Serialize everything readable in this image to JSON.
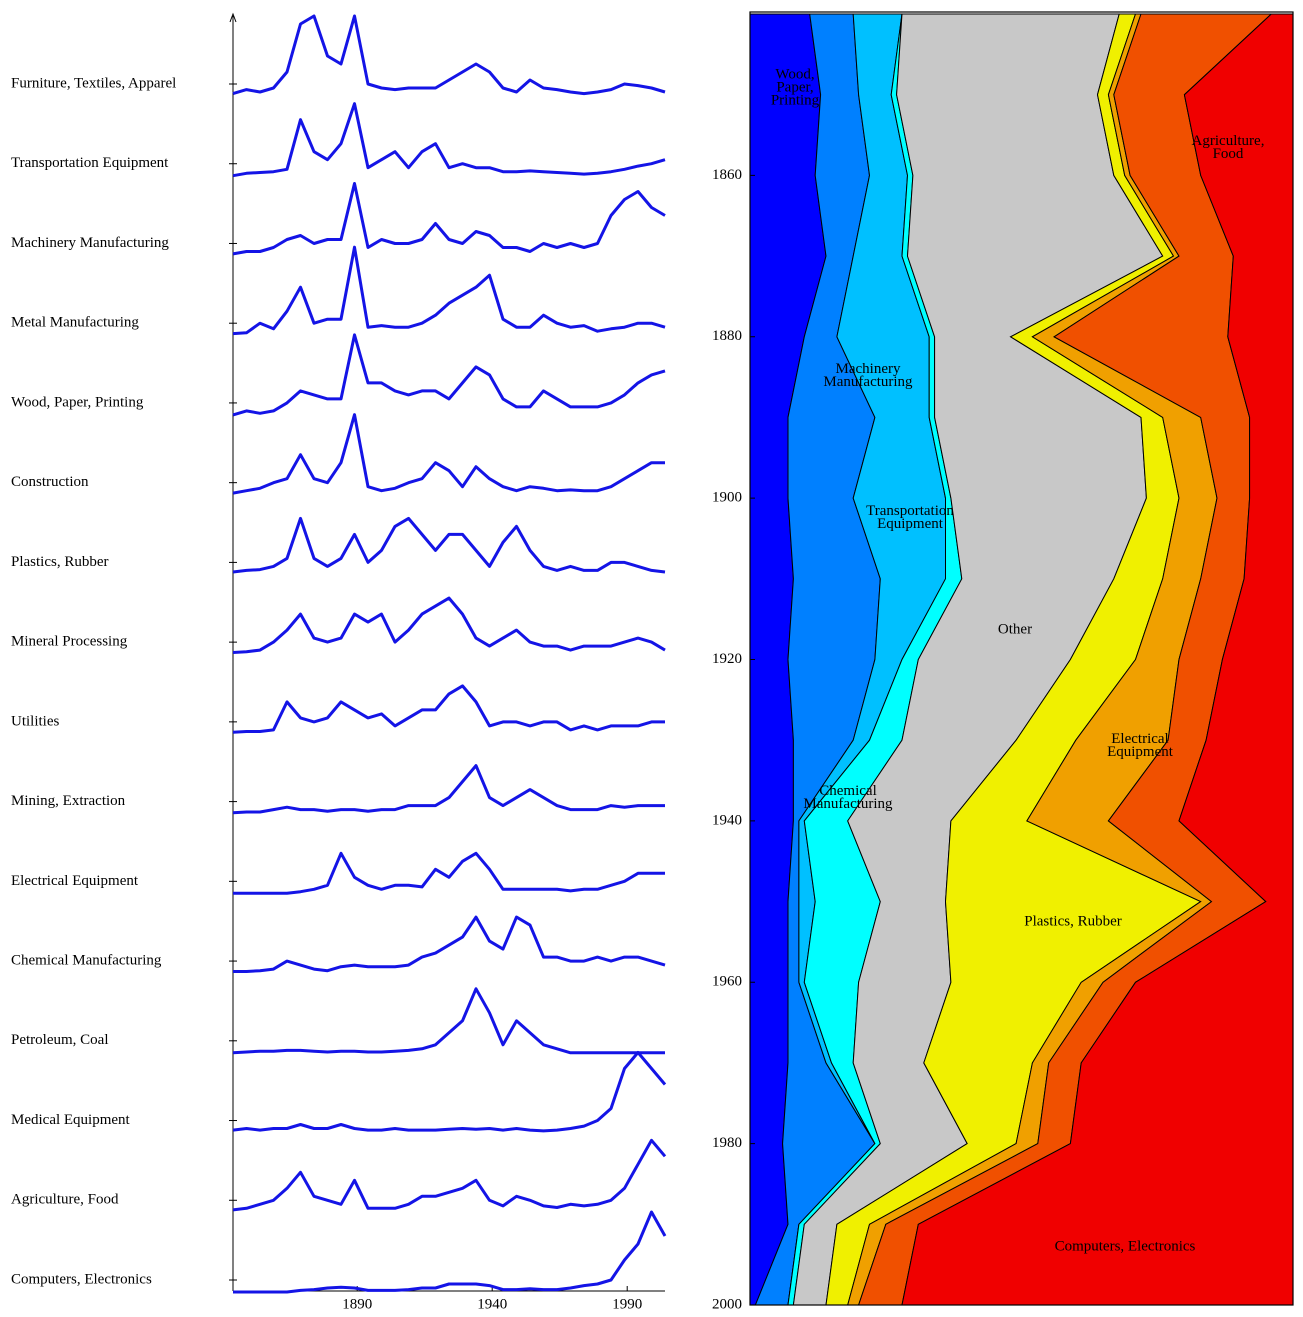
{
  "chart_data": [
    {
      "type": "line",
      "x": [
        1844,
        1849,
        1854,
        1859,
        1864,
        1869,
        1874,
        1879,
        1884,
        1889,
        1894,
        1899,
        1904,
        1909,
        1914,
        1919,
        1924,
        1929,
        1934,
        1939,
        1944,
        1949,
        1954,
        1959,
        1964,
        1969,
        1974,
        1979,
        1984,
        1989,
        1994,
        1999,
        2004
      ],
      "xlim": [
        1844,
        2004
      ],
      "xticks": [
        1890,
        1940,
        1990
      ],
      "series": [
        {
          "name": "Furniture, Textiles, Apparel",
          "color": "#1414e6",
          "values": [
            0.3,
            0.8,
            0.5,
            1,
            3,
            9,
            10,
            5,
            4,
            10,
            1.5,
            1,
            0.8,
            1,
            1,
            1,
            2,
            3,
            4,
            3,
            1,
            0.5,
            2,
            1,
            0.8,
            0.5,
            0.3,
            0.5,
            0.8,
            1.5,
            1.3,
            1,
            0.5
          ]
        },
        {
          "name": "Transportation Equipment",
          "color": "#1414e6",
          "values": [
            0,
            0.3,
            0.4,
            0.5,
            0.8,
            7,
            3,
            2,
            4,
            9,
            1,
            2,
            3,
            1,
            3,
            4,
            1,
            1.5,
            1,
            1,
            0.5,
            0.5,
            0.6,
            0.5,
            0.4,
            0.3,
            0.2,
            0.3,
            0.5,
            0.8,
            1.2,
            1.5,
            2
          ]
        },
        {
          "name": "Machinery Manufacturing",
          "color": "#1414e6",
          "values": [
            0.2,
            0.5,
            0.5,
            1,
            2,
            2.5,
            1.5,
            2,
            2,
            9,
            1,
            2,
            1.5,
            1.5,
            2,
            4,
            2,
            1.5,
            3,
            2.5,
            1,
            1,
            0.5,
            1.5,
            1,
            1.5,
            1,
            1.5,
            5,
            7,
            8,
            6,
            5
          ]
        },
        {
          "name": "Metal Manufacturing",
          "color": "#1414e6",
          "values": [
            0.2,
            0.3,
            1.5,
            0.8,
            3,
            6,
            1.5,
            2,
            2,
            11,
            1,
            1.2,
            1,
            1,
            1.5,
            2.5,
            4,
            5,
            6,
            7.5,
            2,
            1,
            1,
            2.5,
            1.5,
            1,
            1.2,
            0.5,
            0.8,
            1,
            1.5,
            1.5,
            1
          ]
        },
        {
          "name": "Wood, Paper, Printing",
          "color": "#1414e6",
          "values": [
            0,
            0.5,
            0.2,
            0.5,
            1.5,
            3,
            2.5,
            2,
            2,
            10,
            4,
            4,
            3,
            2.5,
            3,
            3,
            2,
            4,
            6,
            5,
            2,
            1,
            1,
            3,
            2,
            1,
            1,
            1,
            1.5,
            2.5,
            4,
            5,
            5.5
          ]
        },
        {
          "name": "Construction",
          "color": "#1414e6",
          "values": [
            0.2,
            0.5,
            0.8,
            1.5,
            2,
            5,
            2,
            1.5,
            4,
            10,
            1,
            0.5,
            0.8,
            1.5,
            2,
            4,
            3,
            1,
            3.5,
            2,
            1,
            0.5,
            1,
            0.8,
            0.5,
            0.6,
            0.5,
            0.5,
            1,
            2,
            3,
            4,
            4
          ]
        },
        {
          "name": "Plastics, Rubber",
          "color": "#1414e6",
          "values": [
            0.3,
            0.5,
            0.6,
            1,
            2,
            7,
            2,
            1,
            2,
            5,
            1.5,
            3,
            6,
            7,
            5,
            3,
            5,
            5,
            3,
            1,
            4,
            6,
            3,
            1,
            0.5,
            1,
            0.5,
            0.5,
            1.5,
            1.5,
            1,
            0.5,
            0.3
          ]
        },
        {
          "name": "Mineral Processing",
          "color": "#1414e6",
          "values": [
            0.2,
            0.3,
            0.5,
            1.5,
            3,
            5,
            2,
            1.5,
            2,
            5,
            4,
            5,
            1.5,
            3,
            5,
            6,
            7,
            5,
            2,
            1,
            2,
            3,
            1.5,
            1,
            1,
            0.5,
            1,
            1,
            1,
            1.5,
            2,
            1.5,
            0.5
          ]
        },
        {
          "name": "Utilities",
          "color": "#1414e6",
          "values": [
            0.2,
            0.3,
            0.3,
            0.5,
            4,
            2,
            1.5,
            2,
            4,
            3,
            2,
            2.5,
            1,
            2,
            3,
            3,
            5,
            6,
            4,
            1,
            1.5,
            1.5,
            1,
            1.5,
            1.5,
            0.5,
            1,
            0.5,
            1,
            1,
            1,
            1.5,
            1.5
          ]
        },
        {
          "name": "Mining, Extraction",
          "color": "#1414e6",
          "values": [
            0.1,
            0.2,
            0.2,
            0.5,
            0.8,
            0.5,
            0.5,
            0.3,
            0.5,
            0.5,
            0.3,
            0.5,
            0.5,
            1,
            1,
            1,
            2,
            4,
            6,
            2,
            1,
            2,
            3,
            2,
            1,
            0.5,
            0.5,
            0.5,
            1,
            0.8,
            1,
            1,
            1
          ]
        },
        {
          "name": "Electrical Equipment",
          "color": "#1414e6",
          "values": [
            0,
            0,
            0,
            0,
            0,
            0.2,
            0.5,
            1,
            5,
            2,
            1,
            0.5,
            1,
            1,
            0.8,
            3,
            2,
            4,
            5,
            3,
            0.5,
            0.5,
            0.5,
            0.5,
            0.5,
            0.3,
            0.5,
            0.5,
            1,
            1.5,
            2.5,
            2.5,
            2.5
          ]
        },
        {
          "name": "Chemical Manufacturing",
          "color": "#1414e6",
          "values": [
            0.2,
            0.2,
            0.3,
            0.5,
            1.5,
            1,
            0.5,
            0.3,
            0.8,
            1,
            0.8,
            0.8,
            0.8,
            1,
            2,
            2.5,
            3.5,
            4.5,
            7,
            4,
            3,
            7,
            6,
            2,
            2,
            1.5,
            1.5,
            2,
            1.5,
            2,
            2,
            1.5,
            1
          ]
        },
        {
          "name": "Petroleum, Coal",
          "color": "#1414e6",
          "values": [
            0,
            0.1,
            0.2,
            0.2,
            0.3,
            0.3,
            0.2,
            0.1,
            0.2,
            0.2,
            0.1,
            0.1,
            0.2,
            0.3,
            0.5,
            1,
            2.5,
            4,
            8,
            5,
            1,
            4,
            2.5,
            1,
            0.5,
            0,
            0,
            0,
            0,
            0,
            0,
            0,
            0
          ]
        },
        {
          "name": "Medical Equipment",
          "color": "#1414e6",
          "values": [
            0.3,
            0.5,
            0.3,
            0.5,
            0.5,
            1,
            0.5,
            0.5,
            1,
            0.5,
            0.3,
            0.3,
            0.5,
            0.3,
            0.3,
            0.3,
            0.4,
            0.5,
            0.4,
            0.5,
            0.3,
            0.5,
            0.3,
            0.2,
            0.3,
            0.5,
            0.8,
            1.5,
            3,
            8,
            10,
            8,
            6
          ]
        },
        {
          "name": "Agriculture, Food",
          "color": "#1414e6",
          "values": [
            0.3,
            0.5,
            1,
            1.5,
            3,
            5,
            2,
            1.5,
            1,
            4,
            0.5,
            0.5,
            0.5,
            1,
            2,
            2,
            2.5,
            3,
            4,
            1.5,
            0.8,
            2,
            1.5,
            0.8,
            0.6,
            1,
            0.8,
            1,
            1.5,
            3,
            6,
            9,
            7
          ]
        },
        {
          "name": "Computers, Electronics",
          "color": "#1414e6",
          "values": [
            0,
            0,
            0,
            0,
            0,
            0.2,
            0.3,
            0.5,
            0.6,
            0.5,
            0.2,
            0.2,
            0.2,
            0.3,
            0.5,
            0.5,
            1,
            1,
            1,
            0.8,
            0.3,
            0.3,
            0.4,
            0.3,
            0.3,
            0.5,
            0.8,
            1,
            1.5,
            4,
            6,
            10,
            7
          ]
        }
      ]
    },
    {
      "type": "stacked-area",
      "orientation": "vertical",
      "x": [
        1840,
        1850,
        1860,
        1870,
        1880,
        1890,
        1900,
        1910,
        1920,
        1930,
        1940,
        1950,
        1960,
        1970,
        1980,
        1990,
        2000
      ],
      "xlim": [
        1840,
        2000
      ],
      "xticks": [
        1860,
        1880,
        1900,
        1920,
        1940,
        1960,
        1980,
        2000
      ],
      "ylim": [
        0,
        100
      ],
      "series": [
        {
          "name": "Wood, Paper, Printing",
          "color": "#0000ff",
          "values": [
            11,
            13,
            12,
            14,
            10,
            7,
            7,
            8,
            7,
            8,
            8,
            7,
            7,
            7,
            6,
            7,
            1
          ]
        },
        {
          "name": "Machinery Manufacturing",
          "color": "#0080ff",
          "values": [
            8,
            7,
            10,
            5,
            6,
            16,
            12,
            16,
            16,
            11,
            1,
            2,
            2,
            7,
            17,
            2,
            6
          ]
        },
        {
          "name": "Transportation Equipment",
          "color": "#00c0ff",
          "values": [
            9,
            6,
            7,
            9,
            17,
            10,
            17,
            12,
            5,
            3,
            1,
            3,
            1,
            1,
            0,
            0,
            0
          ]
        },
        {
          "name": "Chemical Manufacturing",
          "color": "#00ffff",
          "values": [
            0,
            1,
            1,
            1,
            1,
            1,
            1,
            3,
            3,
            6,
            8,
            12,
            10,
            4,
            1,
            1,
            1
          ]
        },
        {
          "name": "Other",
          "color": "#c8c8c8",
          "values": [
            40,
            37,
            37,
            47,
            14,
            38,
            36,
            28,
            28,
            21,
            19,
            12,
            17,
            13,
            16,
            6,
            6
          ]
        },
        {
          "name": "Plastics, Rubber",
          "color": "#f0f000",
          "values": [
            3,
            2,
            2,
            2,
            4,
            4,
            6,
            9,
            12,
            11,
            14,
            47,
            24,
            20,
            9,
            6,
            4
          ]
        },
        {
          "name": "Electrical Equipment",
          "color": "#f0a000",
          "values": [
            1,
            1,
            1,
            1,
            4,
            7,
            7,
            7,
            8,
            17,
            15,
            2,
            4,
            3,
            4,
            3,
            2
          ]
        },
        {
          "name": "Agriculture, Food",
          "color": "#f05000",
          "values": [
            24,
            13,
            13,
            10,
            32,
            9,
            6,
            8,
            8,
            7,
            13,
            10,
            6,
            6,
            6,
            6,
            8
          ]
        },
        {
          "name": "Computers, Electronics",
          "color": "#f00000",
          "values": [
            4,
            20,
            17,
            11,
            12,
            8,
            8,
            9,
            13,
            16,
            21,
            5,
            29,
            39,
            41,
            69,
            72
          ]
        }
      ]
    }
  ]
}
